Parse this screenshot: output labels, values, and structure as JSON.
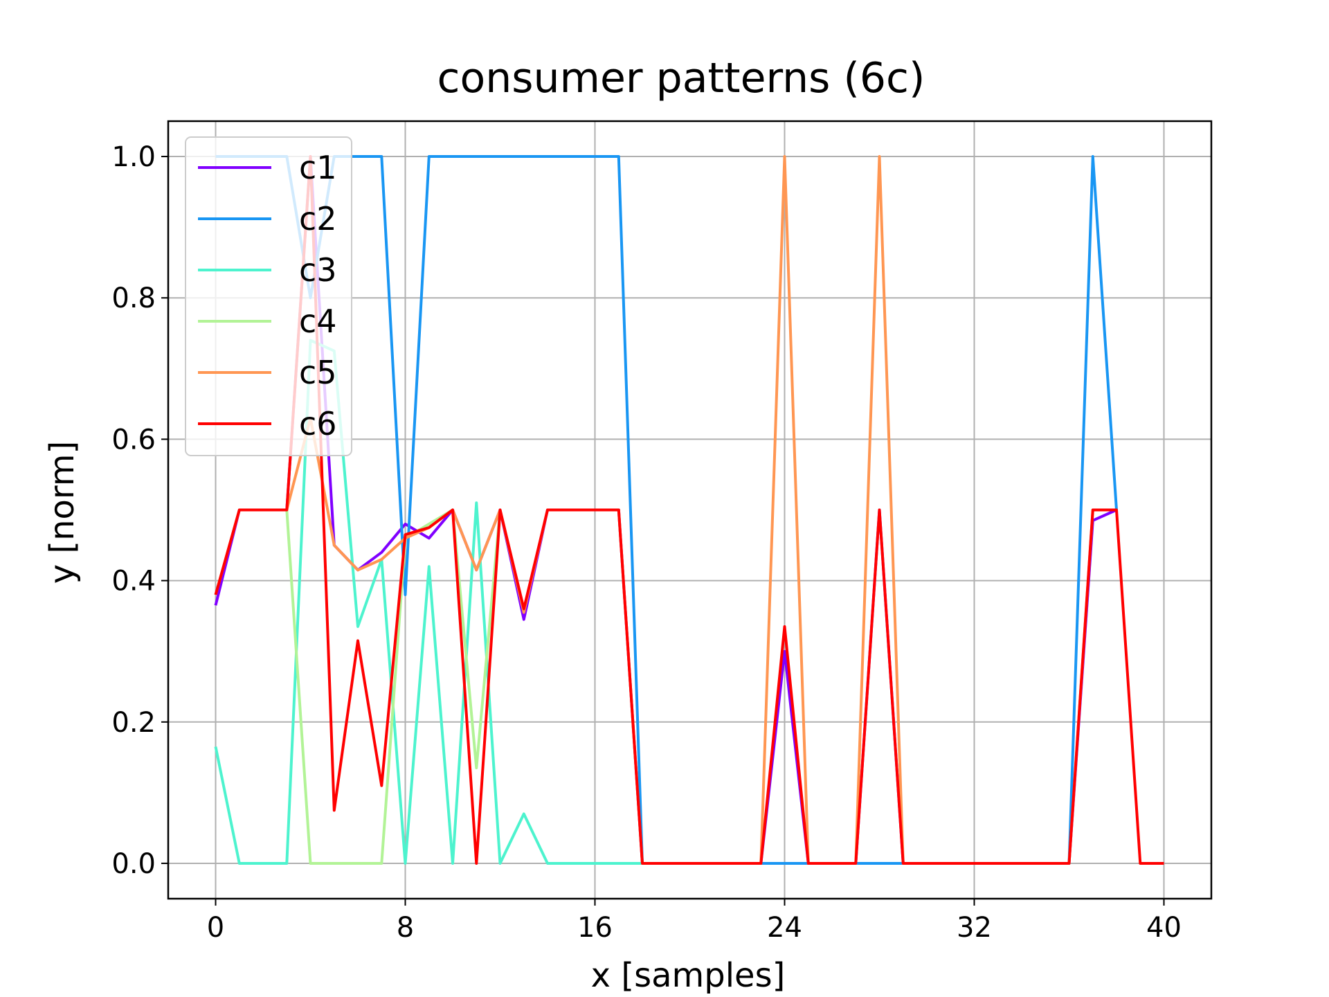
{
  "chart_data": {
    "type": "line",
    "title": "consumer patterns (6c)",
    "xlabel": "x [samples]",
    "ylabel": "y [norm]",
    "xlim": [
      -2,
      42
    ],
    "ylim": [
      -0.05,
      1.05
    ],
    "xticks": [
      0,
      8,
      16,
      24,
      32,
      40
    ],
    "xtick_labels": [
      "0",
      "8",
      "16",
      "24",
      "32",
      "40"
    ],
    "yticks": [
      0.0,
      0.2,
      0.4,
      0.6,
      0.8,
      1.0
    ],
    "ytick_labels": [
      "0.0",
      "0.2",
      "0.4",
      "0.6",
      "0.8",
      "1.0"
    ],
    "grid": true,
    "legend_position": "top-left",
    "series": [
      {
        "name": "c1",
        "color": "#8000ff",
        "x": [
          0,
          1,
          2,
          3,
          4,
          5,
          6,
          7,
          8,
          9,
          10,
          11,
          12,
          13,
          14,
          15,
          16,
          17,
          18,
          19,
          20,
          21,
          22,
          23,
          24,
          25,
          26,
          27,
          28,
          29,
          30,
          31,
          32,
          33,
          34,
          35,
          36,
          37,
          38
        ],
        "y": [
          0.365,
          0.5,
          0.5,
          0.5,
          1.0,
          0.45,
          0.415,
          0.44,
          0.48,
          0.46,
          0.5,
          0.415,
          0.5,
          0.345,
          0.5,
          0.5,
          0.5,
          0.5,
          0.0,
          0.0,
          0.0,
          0.0,
          0.0,
          0.0,
          0.3,
          0.0,
          0.0,
          0.0,
          0.5,
          0.0,
          0.0,
          0.0,
          0.0,
          0.0,
          0.0,
          0.0,
          0.0,
          0.485,
          0.5
        ]
      },
      {
        "name": "c2",
        "color": "#1996f3",
        "x": [
          0,
          1,
          2,
          3,
          4,
          5,
          6,
          7,
          8,
          9,
          10,
          11,
          12,
          13,
          14,
          15,
          16,
          17,
          18,
          19,
          20,
          21,
          22,
          23,
          24,
          25,
          26,
          27,
          28,
          29,
          30,
          31,
          32,
          33,
          34,
          35,
          36,
          37,
          38
        ],
        "y": [
          1.0,
          1.0,
          1.0,
          1.0,
          0.8,
          1.0,
          1.0,
          1.0,
          0.38,
          1.0,
          1.0,
          1.0,
          1.0,
          1.0,
          1.0,
          1.0,
          1.0,
          1.0,
          0.0,
          0.0,
          0.0,
          0.0,
          0.0,
          0.0,
          0.0,
          0.0,
          0.0,
          0.0,
          0.0,
          0.0,
          0.0,
          0.0,
          0.0,
          0.0,
          0.0,
          0.0,
          0.0,
          1.0,
          0.5
        ]
      },
      {
        "name": "c3",
        "color": "#4df3ce",
        "x": [
          0,
          1,
          2,
          3,
          4,
          5,
          6,
          7,
          8,
          9,
          10,
          11,
          12,
          13,
          14,
          15,
          16,
          17,
          18
        ],
        "y": [
          0.165,
          0.0,
          0.0,
          0.0,
          0.74,
          0.725,
          0.335,
          0.43,
          0.0,
          0.42,
          0.0,
          0.51,
          0.0,
          0.07,
          0.0,
          0.0,
          0.0,
          0.0,
          0.0
        ]
      },
      {
        "name": "c4",
        "color": "#b2f396",
        "x": [
          3,
          4,
          5,
          6,
          7,
          8,
          9,
          10,
          11,
          12
        ],
        "y": [
          0.5,
          0.0,
          0.0,
          0.0,
          0.0,
          0.46,
          0.48,
          0.5,
          0.135,
          0.5
        ]
      },
      {
        "name": "c5",
        "color": "#ff9652",
        "x": [
          0,
          1,
          2,
          3,
          4,
          5,
          6,
          7,
          8,
          9,
          10,
          11,
          12,
          13,
          14,
          15,
          16,
          17,
          18,
          19,
          20,
          21,
          22,
          23,
          24,
          25,
          26,
          27,
          28,
          29,
          30,
          31,
          32,
          33,
          34,
          35,
          36,
          37,
          38
        ],
        "y": [
          0.38,
          0.5,
          0.5,
          0.5,
          0.63,
          0.45,
          0.415,
          0.43,
          0.46,
          0.475,
          0.5,
          0.415,
          0.5,
          0.355,
          0.5,
          0.5,
          0.5,
          0.5,
          0.0,
          0.0,
          0.0,
          0.0,
          0.0,
          0.0,
          1.0,
          0.0,
          0.0,
          0.0,
          1.0,
          0.0,
          0.0,
          0.0,
          0.0,
          0.0,
          0.0,
          0.0,
          0.0,
          0.5,
          0.5
        ]
      },
      {
        "name": "c6",
        "color": "#ff0000",
        "x": [
          0,
          1,
          2,
          3,
          4,
          5,
          6,
          7,
          8,
          9,
          10,
          11,
          12,
          13,
          14,
          15,
          16,
          17,
          18,
          19,
          20,
          21,
          22,
          23,
          24,
          25,
          26,
          27,
          28,
          29,
          30,
          31,
          32,
          33,
          34,
          35,
          36,
          37,
          38,
          39,
          40
        ],
        "y": [
          0.38,
          0.5,
          0.5,
          0.5,
          1.0,
          0.075,
          0.315,
          0.11,
          0.465,
          0.475,
          0.5,
          0.0,
          0.5,
          0.36,
          0.5,
          0.5,
          0.5,
          0.5,
          0.0,
          0.0,
          0.0,
          0.0,
          0.0,
          0.0,
          0.335,
          0.0,
          0.0,
          0.0,
          0.5,
          0.0,
          0.0,
          0.0,
          0.0,
          0.0,
          0.0,
          0.0,
          0.0,
          0.5,
          0.5,
          0.0,
          0.0
        ]
      }
    ]
  }
}
